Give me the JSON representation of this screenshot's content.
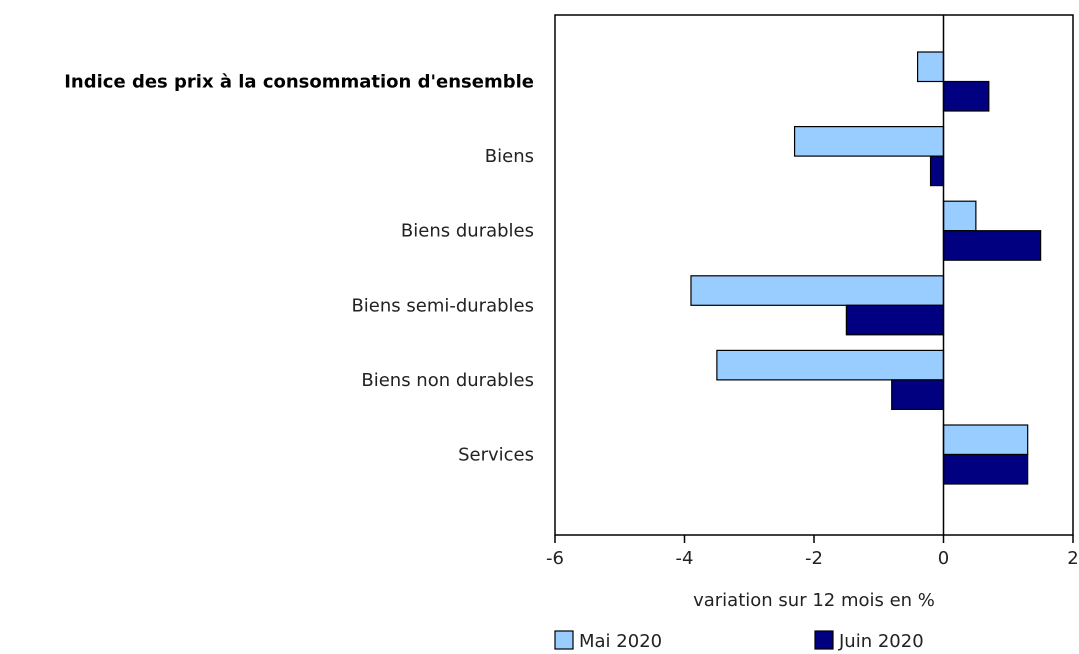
{
  "chart_data": {
    "type": "bar",
    "orientation": "horizontal",
    "categories": [
      "Indice des prix à la consommation d'ensemble",
      "Biens",
      "Biens durables",
      "Biens semi-durables",
      "Biens non durables",
      "Services"
    ],
    "bold_categories": [
      "Indice des prix à la consommation d'ensemble"
    ],
    "series": [
      {
        "name": "Mai 2020",
        "color": "#99ccff",
        "values": [
          -0.4,
          -2.3,
          0.5,
          -3.9,
          -3.5,
          1.3
        ]
      },
      {
        "name": "Juin 2020",
        "color": "#000080",
        "values": [
          0.7,
          -0.2,
          1.5,
          -1.5,
          -0.8,
          1.3
        ]
      }
    ],
    "xlabel": "variation sur 12 mois en %",
    "xlim": [
      -6,
      2
    ],
    "xticks": [
      -6,
      -4,
      -2,
      0,
      2
    ],
    "xtick_labels": [
      "-6",
      "-4",
      "-2",
      "0",
      "2"
    ],
    "grid": false,
    "legend_position": "bottom"
  }
}
